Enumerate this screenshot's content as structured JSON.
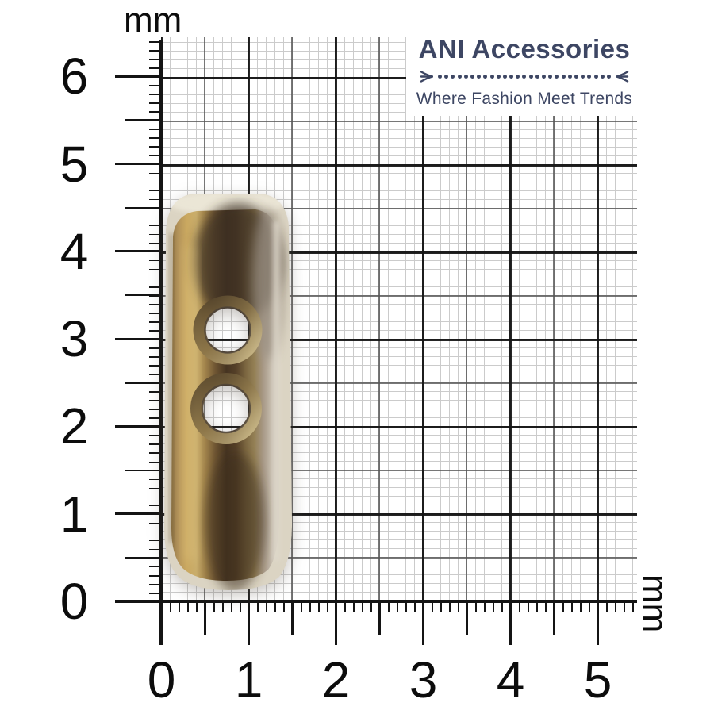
{
  "brand": {
    "title": "ANI Accessories",
    "tagline": "Where Fashion Meet Trends",
    "divider_dots": 27,
    "accent_color": "#3d4663"
  },
  "ruler": {
    "unit_label": "mm",
    "x_axis": {
      "numbers": [
        "0",
        "1",
        "2",
        "3",
        "4",
        "5"
      ]
    },
    "y_axis": {
      "numbers": [
        "0",
        "1",
        "2",
        "3",
        "4",
        "5",
        "6"
      ]
    },
    "minor_ticks_per_unit": 10,
    "grid_colors": {
      "fine": "#cbcbcb",
      "medium": "#555555",
      "integer": "#141414"
    }
  },
  "product": {
    "hole_count": 2,
    "colors": {
      "rim_cream": "#dbd4c3",
      "top_ivory": "#ece7d8",
      "amber_left": "#c9a85f",
      "gold_light": "#dcc07c",
      "dark_brown": "#43331f",
      "olive_mid": "#7c6741",
      "taupe_right": "#9b9183",
      "highlight": "#ded8cb"
    }
  }
}
